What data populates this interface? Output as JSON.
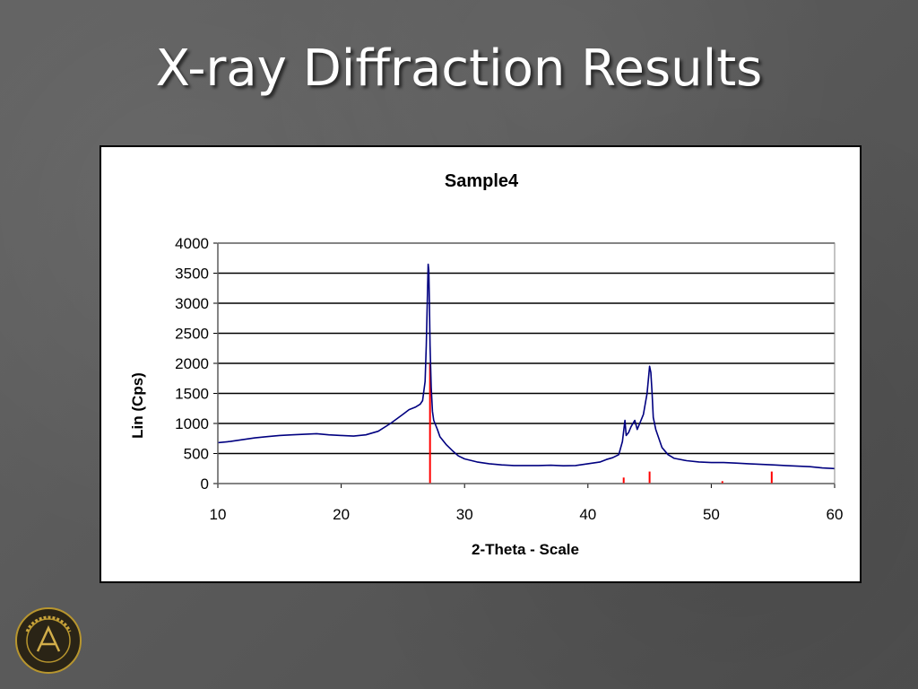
{
  "slide": {
    "title": "X-ray Diffraction Results",
    "logo_text": "purdue university"
  },
  "colors": {
    "pattern": "#000080",
    "reference": "#ff0000",
    "background": "#5b5b5b"
  },
  "chart_data": {
    "type": "line",
    "title": "Sample4",
    "xlabel": "2-Theta - Scale",
    "ylabel": "Lin (Cps)",
    "xlim": [
      10,
      60
    ],
    "ylim": [
      0,
      4000
    ],
    "xticks": [
      10,
      20,
      30,
      40,
      50,
      60
    ],
    "yticks": [
      0,
      500,
      1000,
      1500,
      2000,
      2500,
      3000,
      3500,
      4000
    ],
    "grid": "horizontal",
    "series": [
      {
        "color": "#000080",
        "x": [
          10,
          11,
          12,
          13,
          14,
          15,
          16,
          17,
          18,
          19,
          20,
          21,
          22,
          23,
          24,
          25,
          25.5,
          26,
          26.4,
          26.6,
          26.8,
          26.9,
          27.0,
          27.05,
          27.1,
          27.15,
          27.2,
          27.3,
          27.4,
          27.5,
          27.6,
          27.8,
          28,
          28.5,
          29,
          29.5,
          30,
          31,
          32,
          33,
          34,
          35,
          36,
          37,
          38,
          39,
          40,
          41,
          41.5,
          42,
          42.5,
          42.8,
          43.0,
          43.1,
          43.3,
          43.5,
          43.8,
          44.0,
          44.2,
          44.5,
          44.8,
          45.0,
          45.1,
          45.2,
          45.3,
          45.5,
          46,
          46.5,
          47,
          48,
          49,
          50,
          51,
          52,
          53,
          54,
          55,
          56,
          57,
          58,
          59,
          60
        ],
        "y": [
          680,
          700,
          730,
          760,
          780,
          800,
          810,
          820,
          830,
          810,
          800,
          790,
          810,
          870,
          1000,
          1150,
          1230,
          1270,
          1320,
          1380,
          1700,
          2300,
          3200,
          3650,
          3550,
          3000,
          2300,
          1600,
          1200,
          1050,
          1000,
          900,
          780,
          650,
          550,
          460,
          410,
          360,
          330,
          310,
          300,
          300,
          300,
          305,
          295,
          300,
          330,
          360,
          400,
          430,
          480,
          700,
          1050,
          800,
          850,
          950,
          1050,
          900,
          1000,
          1150,
          1500,
          1950,
          1850,
          1500,
          1100,
          900,
          600,
          480,
          420,
          380,
          360,
          350,
          350,
          340,
          330,
          320,
          310,
          300,
          290,
          280,
          260,
          250
        ]
      }
    ],
    "reference_peaks": [
      {
        "x": 27.2,
        "y": 2000
      },
      {
        "x": 42.9,
        "y": 100
      },
      {
        "x": 45.0,
        "y": 200
      },
      {
        "x": 50.9,
        "y": 40
      },
      {
        "x": 54.9,
        "y": 200
      }
    ]
  }
}
